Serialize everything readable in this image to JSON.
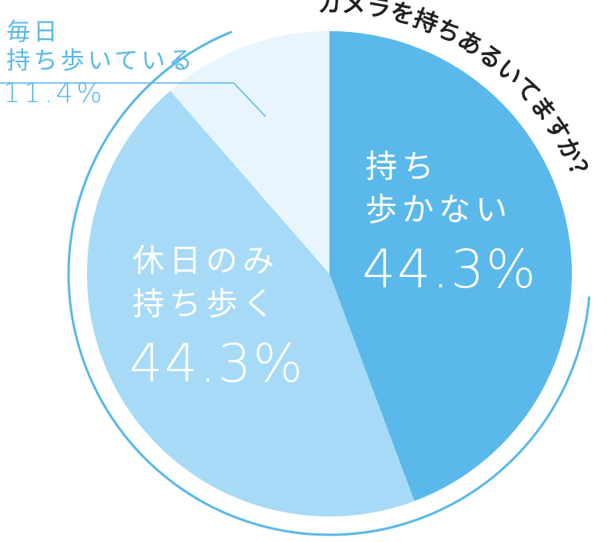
{
  "chart_data": {
    "type": "pie",
    "title": "カメラを持ちあるいてますか？",
    "slices": [
      {
        "label_lines": [
          "持ち",
          "歩かない"
        ],
        "value": 44.3,
        "value_label": "44.3%",
        "color": "#5ab8ea"
      },
      {
        "label_lines": [
          "休日のみ",
          "持ち歩く"
        ],
        "value": 44.3,
        "value_label": "44.3%",
        "color": "#a6daf6"
      },
      {
        "label_lines": [
          "毎日",
          "持ち歩いている"
        ],
        "value": 11.4,
        "value_label": "11.4%",
        "color": "#e8f5fc"
      }
    ],
    "legend": "none",
    "start_angle": "12 o'clock, clockwise",
    "colors": {
      "outline": "#58b8e8",
      "title_text": "#222222",
      "inside_text": "#ffffff",
      "outside_text": "#58b8e8"
    }
  }
}
